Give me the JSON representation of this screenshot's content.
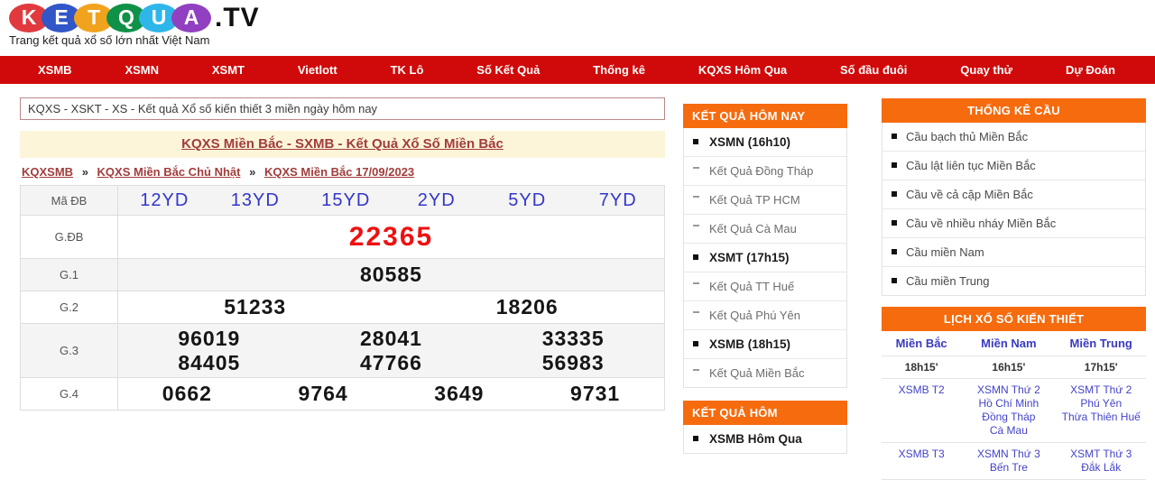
{
  "colors": {
    "nav_red": "#d00a0a",
    "section_orange": "#f66b0e",
    "special_prize_red": "#ee1111",
    "code_blue": "#3237c8",
    "schedule_blue": "#4343cb",
    "title_link_brown": "#a33c3c",
    "title_box_yellow": "#fcf5da",
    "logo_letter_colors": [
      "#e03a3f",
      "#3056c8",
      "#f2a31d",
      "#0f9147",
      "#2eb6ea",
      "#9040c0"
    ]
  },
  "logo": {
    "letters": [
      {
        "char": "K"
      },
      {
        "char": "E"
      },
      {
        "char": "T"
      },
      {
        "char": "Q"
      },
      {
        "char": "U"
      },
      {
        "char": "A"
      }
    ],
    "suffix": ".TV",
    "tagline": "Trang kết quả xổ số lớn nhất Việt Nam"
  },
  "nav": {
    "items": [
      "XSMB",
      "XSMN",
      "XSMT",
      "Vietlott",
      "TK Lô",
      "Số Kết Quả",
      "Thống kê",
      "KQXS Hôm Qua",
      "Số đầu đuôi",
      "Quay thử",
      "Dự Đoán"
    ]
  },
  "main": {
    "notice": "KQXS - XSKT - XS - Kết quả Xổ số kiến thiết 3 miền ngày hôm nay",
    "title": "KQXS Miền Bắc - SXMB - Kết Quả Xổ Số Miền Bắc",
    "breadcrumb": {
      "separator": "»",
      "items": [
        "KQXSMB",
        "KQXS Miền Bắc Chủ Nhật",
        "KQXS Miền Bắc 17/09/2023"
      ]
    },
    "table": {
      "ma_db_label": "Mã ĐB",
      "codes": [
        "12YD",
        "13YD",
        "15YD",
        "2YD",
        "5YD",
        "7YD"
      ],
      "gdb_label": "G.ĐB",
      "gdb": "22365",
      "g1_label": "G.1",
      "g1": "80585",
      "g2_label": "G.2",
      "g2": [
        "51233",
        "18206"
      ],
      "g3_label": "G.3",
      "g3": [
        "96019",
        "28041",
        "33335",
        "84405",
        "47766",
        "56983"
      ],
      "g4_label": "G.4",
      "g4": [
        "0662",
        "9764",
        "3649",
        "9731"
      ]
    }
  },
  "today_box": {
    "title": "KẾT QUẢ HÔM NAY",
    "items": [
      {
        "label": "XSMN (16h10)"
      },
      {
        "label": "Kết Quả Đồng Tháp"
      },
      {
        "label": "Kết Quả TP HCM"
      },
      {
        "label": "Kết Quả Cà Mau"
      },
      {
        "label": "XSMT (17h15)"
      },
      {
        "label": "Kết Quả TT Huế"
      },
      {
        "label": "Kết Quả Phú Yên"
      },
      {
        "label": "XSMB (18h15)"
      },
      {
        "label": "Kết Quả Miền Bắc"
      }
    ]
  },
  "yesterday_box": {
    "title": "KẾT QUẢ HÔM",
    "items": [
      {
        "label": "XSMB Hôm Qua"
      }
    ]
  },
  "stats_box": {
    "title": "THỐNG KÊ CẦU",
    "items": [
      "Cầu bạch thủ Miền Bắc",
      "Cầu lật liên tục Miền Bắc",
      "Cầu về cả cặp Miền Bắc",
      "Cầu về nhiều nháy Miền Bắc",
      "Cầu miền Nam",
      "Cầu miền Trung"
    ]
  },
  "schedule_box": {
    "title": "LỊCH XỔ SỐ KIẾN THIẾT",
    "columns": [
      "Miền Bắc",
      "Miền Nam",
      "Miền Trung"
    ],
    "times": [
      "18h15'",
      "16h15'",
      "17h15'"
    ],
    "rows": [
      {
        "north": [
          "XSMB T2"
        ],
        "south": [
          "XSMN Thứ 2",
          "Hồ Chí Minh",
          "Đồng Tháp",
          "Cà Mau"
        ],
        "central": [
          "XSMT Thứ 2",
          "Phú Yên",
          "Thừa Thiên Huế"
        ]
      },
      {
        "north": [
          "XSMB T3"
        ],
        "south": [
          "XSMN Thứ 3",
          "Bến Tre"
        ],
        "central": [
          "XSMT Thứ 3",
          "Đắk Lắk"
        ]
      }
    ]
  }
}
